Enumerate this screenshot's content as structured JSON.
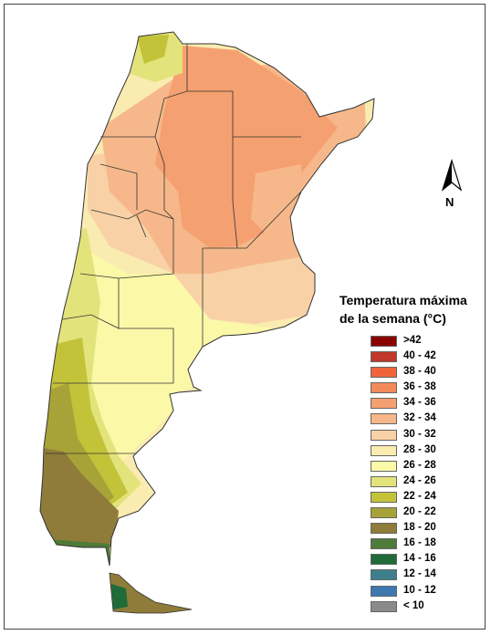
{
  "map": {
    "compass_label": "N",
    "legend": {
      "title_line1": "Temperatura máxima",
      "title_line2": "de la semana (°C)",
      "items": [
        {
          "label": ">42",
          "color": "#8b0000"
        },
        {
          "label": "40 - 42",
          "color": "#c0392b"
        },
        {
          "label": "38 - 40",
          "color": "#f0643c"
        },
        {
          "label": "36 - 38",
          "color": "#f38a5a"
        },
        {
          "label": "34 - 36",
          "color": "#f5a070"
        },
        {
          "label": "32 - 34",
          "color": "#f6b88a"
        },
        {
          "label": "30 - 32",
          "color": "#f8d1a6"
        },
        {
          "label": "28 - 30",
          "color": "#faebb0"
        },
        {
          "label": "26 - 28",
          "color": "#fbf8a8"
        },
        {
          "label": "24 - 26",
          "color": "#e3e37c"
        },
        {
          "label": "22 - 24",
          "color": "#c3c33a"
        },
        {
          "label": "20 - 22",
          "color": "#a8a338"
        },
        {
          "label": "18 - 20",
          "color": "#8f7c3a"
        },
        {
          "label": "16 - 18",
          "color": "#4f7b3a"
        },
        {
          "label": "14 - 16",
          "color": "#1f6b3a"
        },
        {
          "label": "12 - 14",
          "color": "#3f7f8c"
        },
        {
          "label": "10 - 12",
          "color": "#3d78b0"
        },
        {
          "label": "< 10",
          "color": "#8a8a8a"
        }
      ]
    }
  }
}
